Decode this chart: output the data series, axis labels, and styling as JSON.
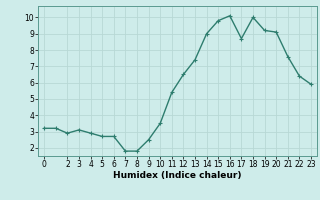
{
  "x": [
    0,
    1,
    2,
    3,
    4,
    5,
    6,
    7,
    8,
    9,
    10,
    11,
    12,
    13,
    14,
    15,
    16,
    17,
    18,
    19,
    20,
    21,
    22,
    23
  ],
  "y": [
    3.2,
    3.2,
    2.9,
    3.1,
    2.9,
    2.7,
    2.7,
    1.8,
    1.8,
    2.5,
    3.5,
    5.4,
    6.5,
    7.4,
    9.0,
    9.8,
    10.1,
    8.7,
    10.0,
    9.2,
    9.1,
    7.6,
    6.4,
    5.9
  ],
  "line_color": "#2e7d6e",
  "marker": "+",
  "marker_size": 3,
  "line_width": 1.0,
  "xlim": [
    -0.5,
    23.5
  ],
  "ylim": [
    1.5,
    10.7
  ],
  "yticks": [
    2,
    3,
    4,
    5,
    6,
    7,
    8,
    9,
    10
  ],
  "xticks": [
    0,
    2,
    3,
    4,
    5,
    6,
    7,
    8,
    9,
    10,
    11,
    12,
    13,
    14,
    15,
    16,
    17,
    18,
    19,
    20,
    21,
    22,
    23
  ],
  "xlabel": "Humidex (Indice chaleur)",
  "background_color": "#ceecea",
  "grid_color": "#b8d8d5",
  "axis_label_fontsize": 6.5,
  "tick_fontsize": 5.5
}
